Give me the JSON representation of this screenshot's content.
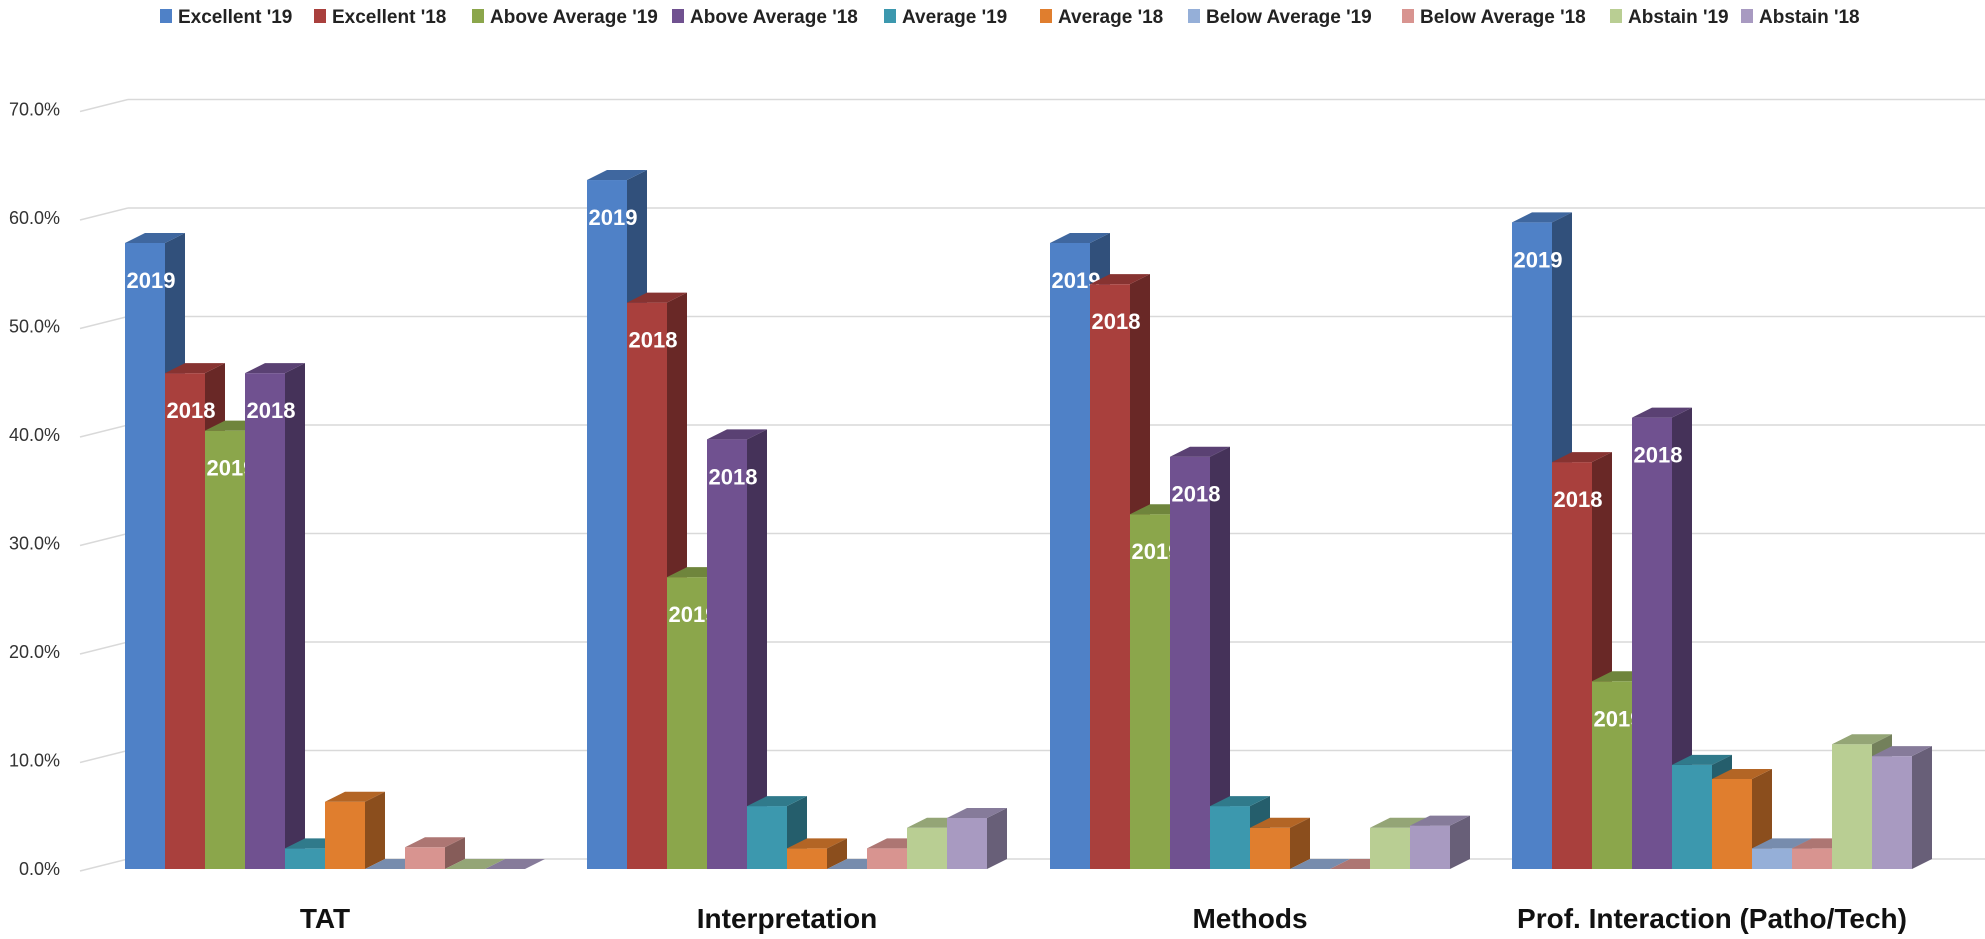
{
  "chart_data": {
    "type": "bar",
    "subtype": "3d-clustered-column",
    "categories": [
      "TAT",
      "Interpretation",
      "Methods",
      "Prof. Interaction (Patho/Tech)"
    ],
    "series": [
      {
        "name": "Excellent  '19",
        "color": "#4F81C7",
        "values": [
          57.7,
          63.5,
          57.7,
          59.6
        ],
        "data_labels": [
          "2019",
          "2019",
          "2019",
          "2019"
        ]
      },
      {
        "name": "Excellent  '18",
        "color": "#A9403D",
        "values": [
          45.7,
          52.2,
          53.9,
          37.5
        ],
        "data_labels": [
          "2018",
          "2018",
          "2018",
          "2018"
        ]
      },
      {
        "name": "Above Average  '19",
        "color": "#8BA64B",
        "values": [
          40.4,
          26.9,
          32.7,
          17.3
        ],
        "data_labels": [
          "2019",
          "2019",
          "2019",
          "2019"
        ]
      },
      {
        "name": "Above Average  '18",
        "color": "#705190",
        "values": [
          45.7,
          39.6,
          38.0,
          41.6
        ],
        "data_labels": [
          "2018",
          "2018",
          "2018",
          "2018"
        ]
      },
      {
        "name": "Average  '19",
        "color": "#3C98AE",
        "values": [
          1.9,
          5.8,
          5.8,
          9.6
        ],
        "data_labels": [
          "",
          "",
          "",
          ""
        ]
      },
      {
        "name": "Average  '18",
        "color": "#E07E2E",
        "values": [
          6.2,
          1.9,
          3.8,
          8.3
        ],
        "data_labels": [
          "",
          "",
          "",
          ""
        ]
      },
      {
        "name": "Below Average  '19",
        "color": "#95AFD8",
        "values": [
          0.0,
          0.0,
          0.0,
          1.9
        ],
        "data_labels": [
          "",
          "",
          "",
          ""
        ]
      },
      {
        "name": "Below Average  '18",
        "color": "#D89490",
        "values": [
          2.0,
          1.9,
          0.0,
          1.9
        ],
        "data_labels": [
          "",
          "",
          "",
          ""
        ]
      },
      {
        "name": "Abstain  '19",
        "color": "#B9CE93",
        "values": [
          0.0,
          3.8,
          3.8,
          11.5
        ],
        "data_labels": [
          "",
          "",
          "",
          ""
        ]
      },
      {
        "name": "Abstain  '18",
        "color": "#A89AC1",
        "values": [
          0.0,
          4.7,
          4.0,
          10.4
        ],
        "data_labels": [
          "",
          "",
          "",
          ""
        ]
      }
    ],
    "y_ticks": [
      "0.0%",
      "10.0%",
      "20.0%",
      "30.0%",
      "40.0%",
      "50.0%",
      "60.0%",
      "70.0%"
    ],
    "ylim": [
      0,
      70
    ],
    "y_format": "percent",
    "grid": true,
    "legend_position": "top"
  }
}
